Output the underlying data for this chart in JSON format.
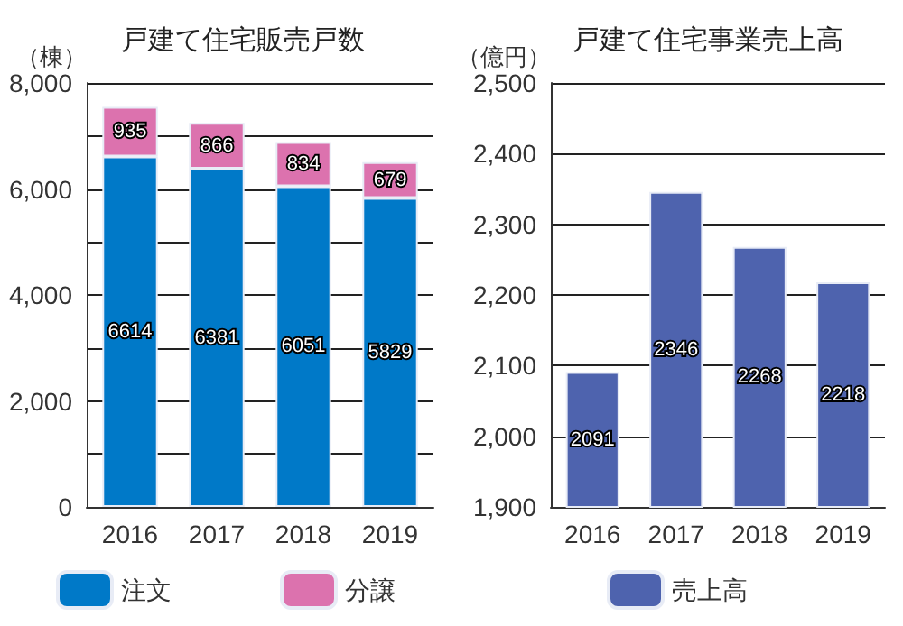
{
  "chart_data": [
    {
      "type": "bar",
      "title": "戸建て住宅販売戸数",
      "ylabel": "（棟）",
      "categories": [
        "2016",
        "2017",
        "2018",
        "2019"
      ],
      "stacked": true,
      "series": [
        {
          "name": "注文",
          "color": "#0079c8",
          "values": [
            6614,
            6381,
            6051,
            5829
          ]
        },
        {
          "name": "分譲",
          "color": "#dc72ae",
          "values": [
            935,
            866,
            834,
            679
          ]
        }
      ],
      "ylim": [
        0,
        8000
      ],
      "yticks": [
        0,
        {
          "value": 1000,
          "label": null
        },
        {
          "value": 2000,
          "label": "2,000"
        },
        {
          "value": 3000,
          "label": null
        },
        {
          "value": 4000,
          "label": "4,000"
        },
        {
          "value": 5000,
          "label": null
        },
        {
          "value": 6000,
          "label": "6,000"
        },
        {
          "value": 7000,
          "label": null
        },
        {
          "value": 8000,
          "label": "8,000"
        }
      ],
      "grid": "y",
      "legend": "bottom",
      "data_labels": true
    },
    {
      "type": "bar",
      "title": "戸建て住宅事業売上高",
      "ylabel": "（億円）",
      "categories": [
        "2016",
        "2017",
        "2018",
        "2019"
      ],
      "series": [
        {
          "name": "売上高",
          "color": "#4e63ae",
          "values": [
            2091,
            2346,
            2268,
            2218
          ]
        }
      ],
      "ylim": [
        1900,
        2500
      ],
      "yticks": [
        {
          "value": 1900,
          "label": "1,900"
        },
        {
          "value": 2000,
          "label": "2,000"
        },
        {
          "value": 2100,
          "label": "2,100"
        },
        {
          "value": 2200,
          "label": "2,200"
        },
        {
          "value": 2300,
          "label": "2,300"
        },
        {
          "value": 2400,
          "label": "2,400"
        },
        {
          "value": 2500,
          "label": "2,500"
        }
      ],
      "grid": "y",
      "legend": "bottom",
      "data_labels": true
    }
  ]
}
